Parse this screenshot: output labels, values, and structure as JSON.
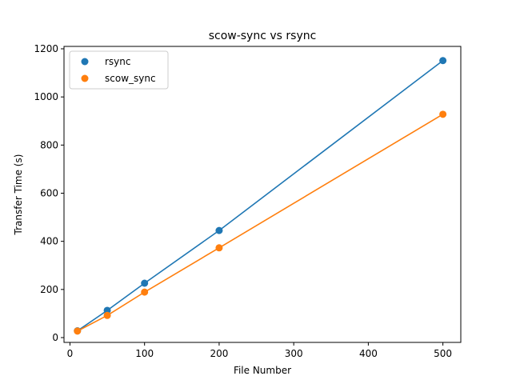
{
  "chart_data": {
    "type": "scatter",
    "title": "scow-sync vs rsync",
    "xlabel": "File Number",
    "ylabel": "Transfer Time (s)",
    "xlim": [
      -8,
      524
    ],
    "ylim": [
      -20,
      1210
    ],
    "xticks": [
      0,
      100,
      200,
      300,
      400,
      500
    ],
    "yticks": [
      0,
      200,
      400,
      600,
      800,
      1000,
      1200
    ],
    "grid": false,
    "legend_position": "top-left",
    "series": [
      {
        "name": "rsync",
        "color": "#1f77b4",
        "x": [
          10,
          50,
          100,
          200,
          500
        ],
        "y": [
          28,
          113,
          226,
          445,
          1151
        ]
      },
      {
        "name": "scow_sync",
        "color": "#ff7f0e",
        "x": [
          10,
          50,
          100,
          200,
          500
        ],
        "y": [
          27,
          92,
          189,
          373,
          928
        ]
      }
    ]
  }
}
